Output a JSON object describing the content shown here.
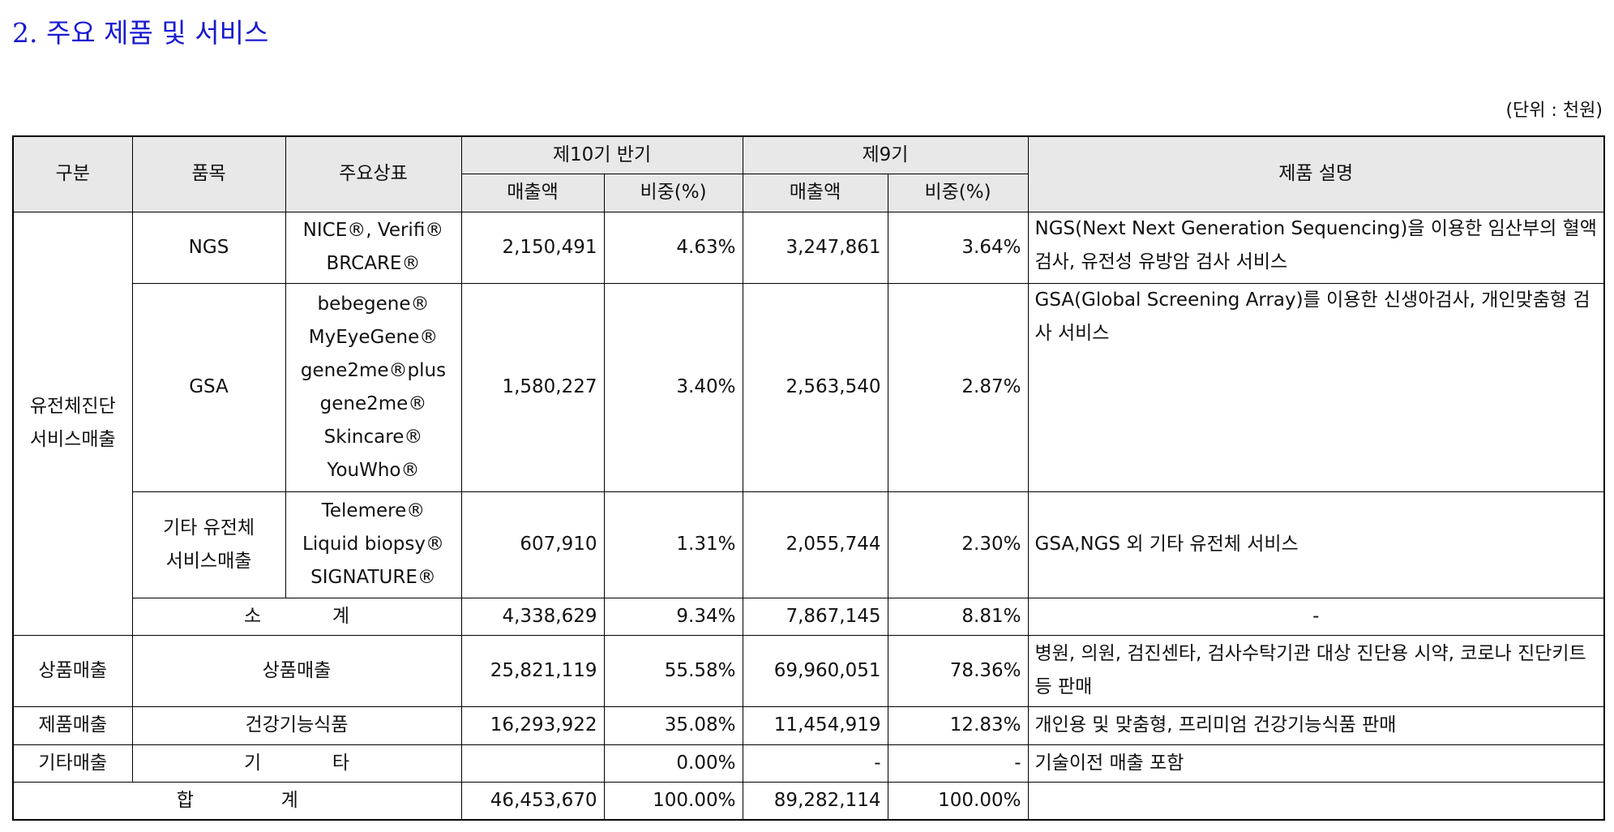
{
  "title": "2. 주요 제품 및 서비스",
  "unit": "(단위 : 천원)",
  "table": {
    "header_row1": [
      "구분",
      "품목",
      "주요상표",
      "제10기 반기",
      "제9기",
      "제품 설명"
    ],
    "header_row2": [
      "매출액",
      "비중(%)",
      "매출액",
      "비중(%)"
    ],
    "group1": [
      "유전체진단",
      "서비스매출"
    ],
    "rows": [
      {
        "item": [
          "NGS"
        ],
        "brands": [
          "NICE®, Verifi®",
          "BRCARE®"
        ],
        "sales1": "2,150,491",
        "ratio1": "4.63%",
        "sales2": "3,247,861",
        "ratio2": "3.64%",
        "desc": "NGS(Next Next Generation Sequencing)을 이용한 임산부의 혈액검사, 유전성 유방암 검사 서비스"
      },
      {
        "item": [
          "GSA"
        ],
        "brands": [
          "bebegene®",
          "MyEyeGene®",
          "gene2me®plus",
          "gene2me®",
          "Skincare®",
          "YouWho®"
        ],
        "sales1": "1,580,227",
        "ratio1": "3.40%",
        "sales2": "2,563,540",
        "ratio2": "2.87%",
        "desc": "GSA(Global Screening Array)를 이용한 신생아검사, 개인맞춤형 검사 서비스"
      },
      {
        "item": [
          "기타 유전체",
          "서비스매출"
        ],
        "brands": [
          "Telemere®",
          "Liquid biopsy®",
          "SIGNATURE®"
        ],
        "sales1": "607,910",
        "ratio1": "1.31%",
        "sales2": "2,055,744",
        "ratio2": "2.30%",
        "desc": "GSA,NGS 외 기타 유전체 서비스"
      }
    ],
    "subtotal": {
      "label": [
        "소",
        "계"
      ],
      "sales1": "4,338,629",
      "ratio1": "9.34%",
      "sales2": "7,867,145",
      "ratio2": "8.81%",
      "desc": "-"
    },
    "goods": {
      "group": "상품매출",
      "item": "상품매출",
      "sales1": "25,821,119",
      "ratio1": "55.58%",
      "sales2": "69,960,051",
      "ratio2": "78.36%",
      "desc": "병원, 의원, 검진센타, 검사수탁기관 대상 진단용 시약, 코로나 진단키트 등 판매"
    },
    "products": {
      "group": "제품매출",
      "item": "건강기능식품",
      "sales1": "16,293,922",
      "ratio1": "35.08%",
      "sales2": "11,454,919",
      "ratio2": "12.83%",
      "desc": "개인용 및 맞춤형, 프리미엄 건강기능식품 판매"
    },
    "other": {
      "group": "기타매출",
      "item": [
        "기",
        "타"
      ],
      "ratio1": "0.00%",
      "sales2": "-",
      "ratio2": "-",
      "desc": "기술이전 매출 포함"
    },
    "total": {
      "label": [
        "합",
        "계"
      ],
      "sales1": "46,453,670",
      "ratio1": "100.00%",
      "sales2": "89,282,114",
      "ratio2": "100.00%"
    }
  }
}
